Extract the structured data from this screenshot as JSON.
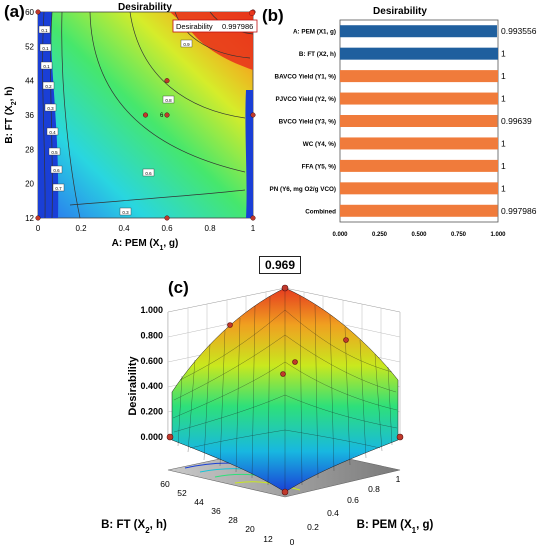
{
  "panels": {
    "a": {
      "label": "(a)",
      "title": "Desirability",
      "flag": {
        "text": "Desirability",
        "value": "0.997986"
      },
      "xlabel": "A: PEM (X1, g)",
      "ylabel": "B: FT (X2, h)",
      "x_ticks": [
        "0",
        "0.2",
        "0.4",
        "0.6",
        "0.8",
        "1"
      ],
      "y_ticks": [
        "12",
        "20",
        "28",
        "36",
        "44",
        "52",
        "60"
      ],
      "center_point_label": "6",
      "contour_labels": [
        "0.1",
        "0.2",
        "0.3",
        "0.4",
        "0.5",
        "0.6",
        "0.7",
        "0.8",
        "0.9"
      ]
    },
    "b": {
      "label": "(b)",
      "title": "Desirability",
      "x_ticks": [
        "0.000",
        "0.250",
        "0.500",
        "0.750",
        "1.000"
      ]
    },
    "c": {
      "label": "(c)",
      "peak_value": "0.969",
      "zlabel": "Desirability",
      "z_ticks": [
        "1.000",
        "0.800",
        "0.600",
        "0.400",
        "0.200",
        "0.000"
      ],
      "x_label": "B: FT (X2, h)",
      "x_ticks": [
        "60",
        "52",
        "44",
        "36",
        "28",
        "20",
        "12"
      ],
      "y_label": "B: PEM (X1, g)",
      "y_ticks": [
        "0",
        "0.2",
        "0.4",
        "0.6",
        "0.8",
        "1"
      ]
    }
  },
  "chart_data": [
    {
      "type": "heatmap",
      "title": "Desirability",
      "xlabel": "A: PEM (X1, g)",
      "ylabel": "B: FT (X2, h)",
      "xlim": [
        0,
        1
      ],
      "ylim": [
        12,
        60
      ],
      "optimum": {
        "x": 0.993556,
        "y": 60,
        "desirability": 0.997986
      },
      "design_points": [
        {
          "x": 0,
          "y": 12
        },
        {
          "x": 1,
          "y": 12
        },
        {
          "x": 0,
          "y": 60
        },
        {
          "x": 1,
          "y": 60
        },
        {
          "x": 0.5,
          "y": 36
        },
        {
          "x": 0.6,
          "y": 36
        },
        {
          "x": 0.6,
          "y": 44
        },
        {
          "x": 0.6,
          "y": 12
        },
        {
          "x": 1,
          "y": 36
        }
      ],
      "colors": {
        "low": "#1a3fd6",
        "mid": "#2ee07a",
        "high": "#e63b1f"
      }
    },
    {
      "type": "bar",
      "title": "Desirability",
      "orientation": "horizontal",
      "categories": [
        "A: PEM (X1, g)",
        "B: FT (X2, h)",
        "BAVCO Yield (Y1, %)",
        "PJVCO Yield (Y2, %)",
        "BVCO Yield (Y3, %)",
        "WC (Y4, %)",
        "FFA (Y5, %)",
        "PN (Y6, mg O2/g VCO)",
        "Combined"
      ],
      "values": [
        0.993556,
        1,
        1,
        1,
        0.99639,
        1,
        1,
        1,
        0.997986
      ],
      "value_labels": [
        "0.993556",
        "1",
        "1",
        "1",
        "0.99639",
        "1",
        "1",
        "1",
        "0.997986"
      ],
      "bar_colors": [
        "#1f5f9e",
        "#1f5f9e",
        "#f07b3b",
        "#f07b3b",
        "#f07b3b",
        "#f07b3b",
        "#f07b3b",
        "#f07b3b",
        "#f07b3b"
      ],
      "xlim": [
        0,
        1
      ]
    },
    {
      "type": "surface",
      "zlabel": "Desirability",
      "xlabel": "B: FT (X2, h)",
      "ylabel": "B: PEM (X1, g)",
      "zlim": [
        0,
        1
      ],
      "peak": 0.969,
      "colormap": [
        "#1a3fd6",
        "#18c3d6",
        "#2ee07a",
        "#c9e81e",
        "#f0a020",
        "#e63b1f"
      ]
    }
  ]
}
